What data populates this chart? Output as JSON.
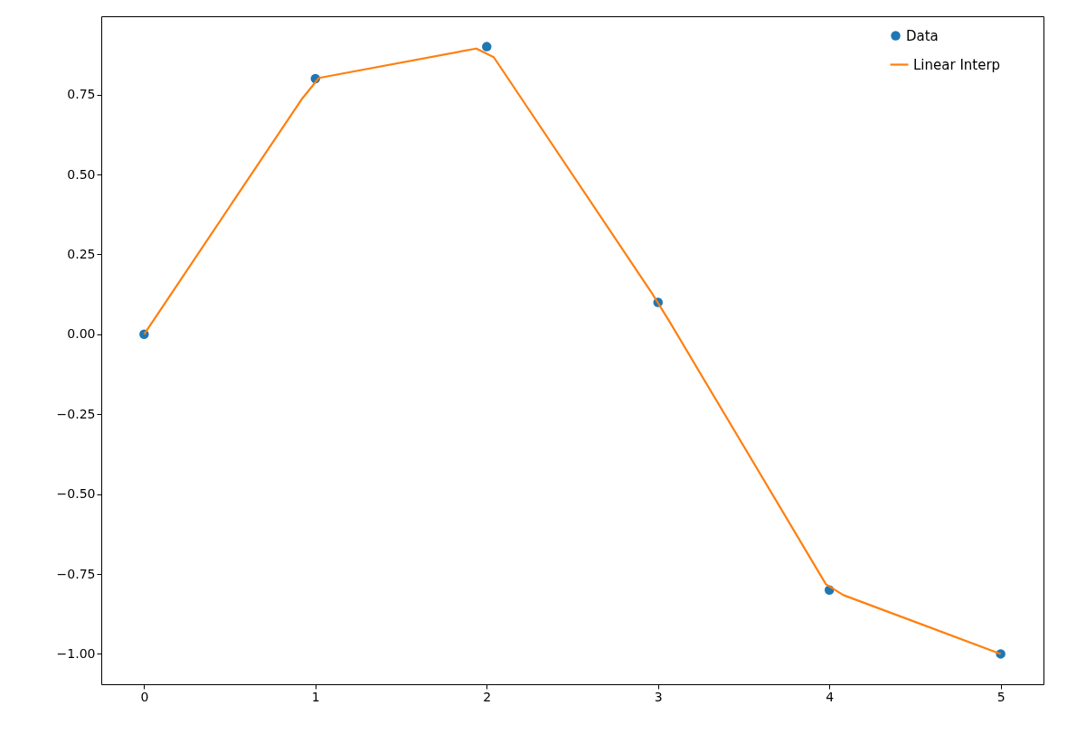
{
  "chart_data": {
    "type": "line",
    "series": [
      {
        "name": "Data",
        "type": "scatter",
        "marker": "circle",
        "color": "#1f77b4",
        "x": [
          0,
          1,
          2,
          3,
          4,
          5
        ],
        "values": [
          0,
          0.8,
          0.9,
          0.1,
          -0.8,
          -1.0
        ]
      },
      {
        "name": "Linear Interp",
        "marker": "none",
        "color": "#ff7f0e",
        "x": [
          0,
          0.918,
          1.02,
          1.939,
          2.041,
          2.959,
          3.061,
          3.98,
          4.082,
          5
        ],
        "values": [
          0,
          0.734,
          0.802,
          0.894,
          0.867,
          0.133,
          0.045,
          -0.782,
          -0.816,
          -1.0
        ]
      }
    ],
    "xlim": [
      -0.25,
      5.25
    ],
    "xticks": [
      0,
      1,
      2,
      3,
      4,
      5
    ],
    "ylim": [
      -1.095,
      0.995
    ],
    "yticks": [
      {
        "value": -1,
        "label": "−1.00"
      },
      {
        "value": -0.75,
        "label": "−0.75"
      },
      {
        "value": -0.5,
        "label": "−0.50"
      },
      {
        "value": -0.25,
        "label": "−0.25"
      },
      {
        "value": 0,
        "label": "0.00"
      },
      {
        "value": 0.25,
        "label": "0.25"
      },
      {
        "value": 0.5,
        "label": "0.50"
      },
      {
        "value": 0.75,
        "label": "0.75"
      }
    ],
    "legend": "top right",
    "line_style": "solid",
    "grid": false
  }
}
